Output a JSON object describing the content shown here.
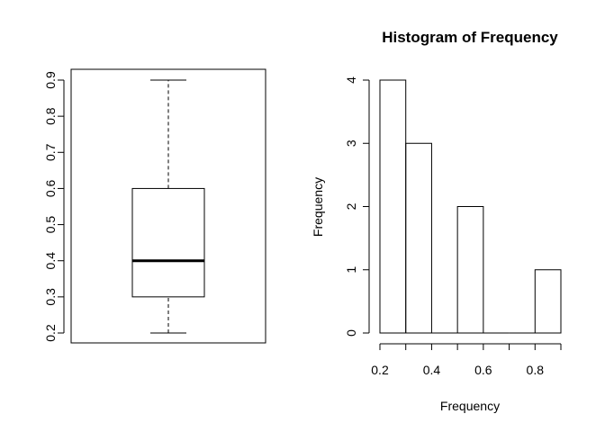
{
  "chart_data": [
    {
      "type": "box",
      "title": "",
      "xlabel": "",
      "ylabel": "",
      "ylim": [
        0.2,
        0.9
      ],
      "yticks": [
        "0.2",
        "0.3",
        "0.4",
        "0.5",
        "0.6",
        "0.7",
        "0.8",
        "0.9"
      ],
      "stats": {
        "min": 0.2,
        "q1": 0.3,
        "median": 0.4,
        "q3": 0.6,
        "max": 0.9
      }
    },
    {
      "type": "bar",
      "subtype": "histogram",
      "title": "Histogram of Frequency",
      "xlabel": "Frequency",
      "ylabel": "Frequency",
      "bins": [
        {
          "from": 0.2,
          "to": 0.3,
          "count": 4
        },
        {
          "from": 0.3,
          "to": 0.4,
          "count": 3
        },
        {
          "from": 0.4,
          "to": 0.5,
          "count": 0
        },
        {
          "from": 0.5,
          "to": 0.6,
          "count": 2
        },
        {
          "from": 0.6,
          "to": 0.7,
          "count": 0
        },
        {
          "from": 0.7,
          "to": 0.8,
          "count": 0
        },
        {
          "from": 0.8,
          "to": 0.9,
          "count": 1
        }
      ],
      "xlim": [
        0.2,
        0.9
      ],
      "ylim": [
        0,
        4
      ],
      "xticks": [
        "0.2",
        "0.4",
        "0.6",
        "0.8"
      ],
      "yticks": [
        "0",
        "1",
        "2",
        "3",
        "4"
      ]
    }
  ]
}
